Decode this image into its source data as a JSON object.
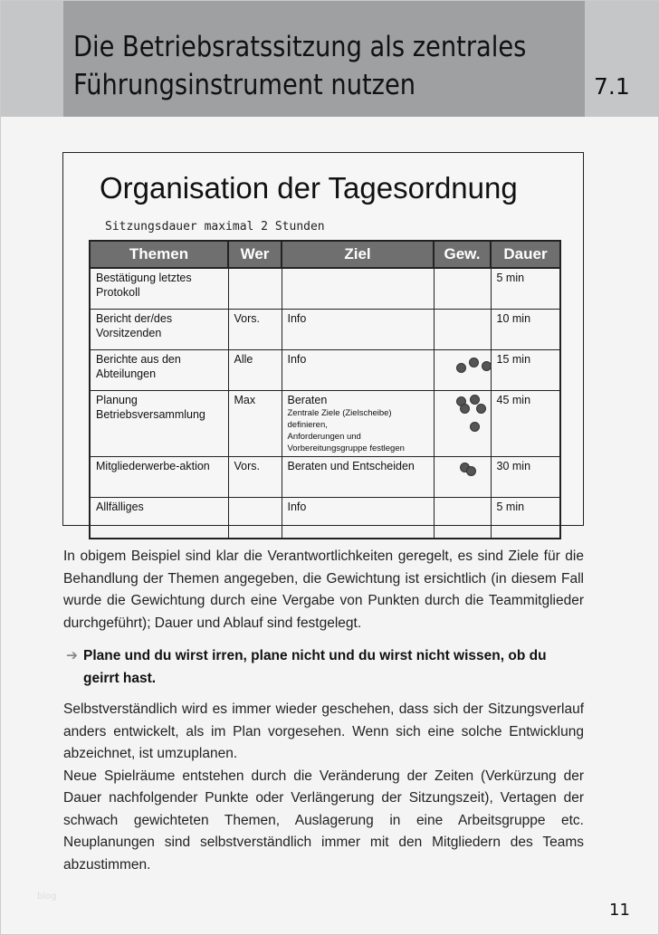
{
  "header": {
    "title_line1": "Die Betriebsratssitzung als zentrales",
    "title_line2": "Führungsinstrument nutzen",
    "chapter": "7.1"
  },
  "box": {
    "title": "Organisation der Tagesordnung",
    "subtitle": "Sitzungsdauer maximal 2 Stunden",
    "columns": [
      "Themen",
      "Wer",
      "Ziel",
      "Gew.",
      "Dauer"
    ],
    "rows": [
      {
        "thema": "Bestätigung letztes Protokoll",
        "wer": "",
        "ziel": "",
        "ziel_detail": [],
        "gewichtung": 0,
        "dauer": "5 min"
      },
      {
        "thema": "Bericht der/des Vorsitzenden",
        "wer": "Vors.",
        "ziel": "Info",
        "ziel_detail": [],
        "gewichtung": 0,
        "dauer": "10 min"
      },
      {
        "thema": "Berichte aus den Abteilungen",
        "wer": "Alle",
        "ziel": "Info",
        "ziel_detail": [],
        "gewichtung": 3,
        "dauer": "15 min"
      },
      {
        "thema": "Planung Betriebsversammlung",
        "wer": "Max",
        "ziel": "Beraten",
        "ziel_detail": [
          "Zentrale Ziele (Zielscheibe) definieren,",
          "Anforderungen und Vorbereitungsgruppe festlegen"
        ],
        "gewichtung": 5,
        "dauer": "45 min"
      },
      {
        "thema": "Mitgliederwerbe-aktion",
        "wer": "Vors.",
        "ziel": "Beraten und Entscheiden",
        "ziel_detail": [],
        "gewichtung": 2,
        "dauer": "30 min"
      },
      {
        "thema": "Allfälliges",
        "wer": "",
        "ziel": "Info",
        "ziel_detail": [],
        "gewichtung": 0,
        "dauer": "5 min"
      }
    ]
  },
  "body": {
    "p1": "In obigem Beispiel sind klar die Verantwortlichkeiten geregelt, es sind Ziele für die Behandlung der Themen angegeben, die Gewichtung ist ersichtlich (in diesem Fall wurde die Gewichtung durch eine Vergabe von Punkten durch die Teammitglieder durchgeführt); Dauer und Ablauf sind festgelegt.",
    "quote_line1": "Plane und du wirst irren, plane nicht und du wirst nicht wissen, ob du",
    "quote_line2": "geirrt hast.",
    "p2": "Selbstverständlich wird es immer wieder geschehen, dass sich der Sitzungsverlauf anders entwickelt, als im Plan vorgesehen. Wenn sich eine solche Entwicklung abzeichnet, ist umzuplanen.",
    "p3": "Neue Spielräume entstehen durch die Veränderung der Zeiten (Verkürzung der Dauer nachfolgender Punkte oder Verlängerung der Sitzungszeit), Vertagen der schwach gewichteten Themen, Auslagerung in eine Arbeitsgruppe etc. Neuplanungen sind selbstverständlich immer mit den Mitgliedern des Teams abzustimmen."
  },
  "footer": {
    "watermark": "blog",
    "page_number": "11"
  },
  "colors": {
    "header_band": "#9ea0a2",
    "header_side": "#c4c6c8",
    "table_header": "#6f6f6f",
    "dot": "#555555"
  }
}
